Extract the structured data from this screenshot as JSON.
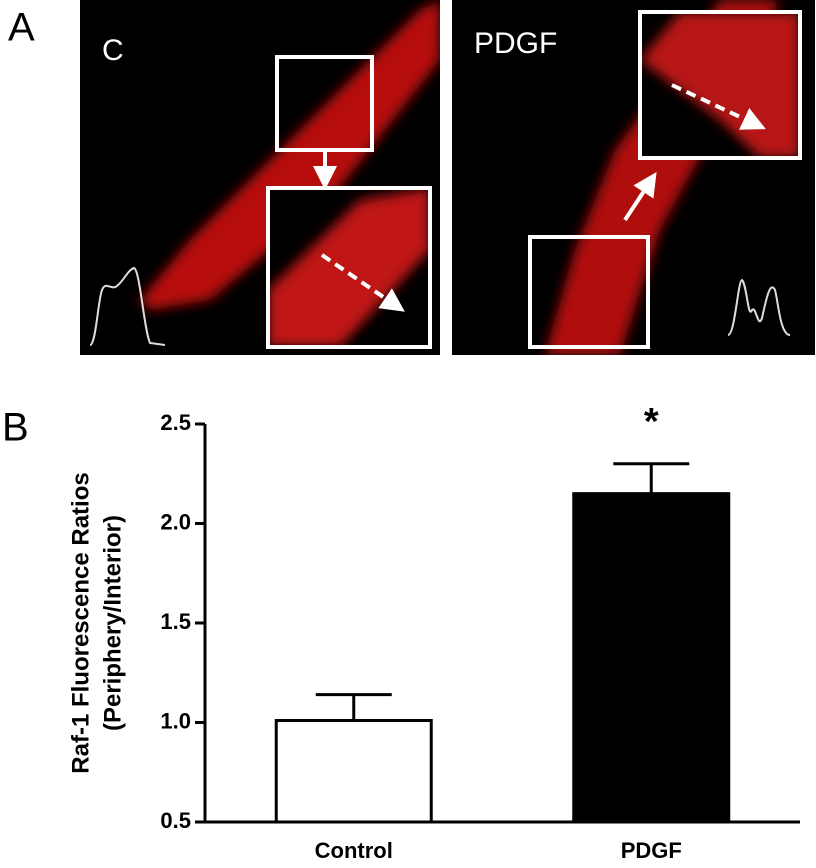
{
  "figure": {
    "panel_labels": [
      "A",
      "B"
    ],
    "image_labels": [
      "C",
      "PDGF"
    ]
  },
  "chart_data": {
    "type": "bar",
    "ylabel": [
      "Raf-1 Fluorescence Ratios",
      "(Periphery/Interior)"
    ],
    "categories": [
      "Control",
      "PDGF"
    ],
    "values": [
      1.01,
      2.15
    ],
    "errors": [
      0.13,
      0.15
    ],
    "colors": [
      "#ffffff",
      "#000000"
    ],
    "edgecolor": "#000000",
    "annotation": "*",
    "ylim": [
      0.5,
      2.5
    ],
    "yticks": [
      0.5,
      {
        "value": 1,
        "label": "1.0"
      },
      1.5,
      {
        "value": 2,
        "label": "2.0"
      },
      2.5
    ]
  }
}
